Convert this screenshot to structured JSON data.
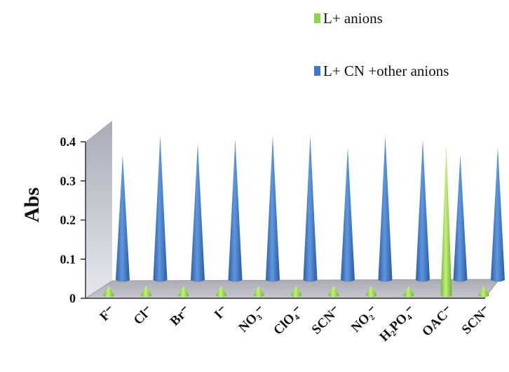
{
  "chart_data": {
    "type": "bar",
    "title": "",
    "xlabel": "",
    "ylabel": "Abs",
    "ylim": [
      0,
      0.4
    ],
    "yticks": [
      "0",
      "0.1",
      "0.2",
      "0.3",
      "0.4"
    ],
    "categories": [
      "F⁻",
      "Cl⁻",
      "Br⁻",
      "I⁻",
      "NO₃⁻",
      "ClO₄⁻",
      "SCN⁻",
      "NO₂⁻",
      "H₂PO₄⁻",
      "OAC⁻",
      "SCN⁻"
    ],
    "series": [
      {
        "name": "L+ anions",
        "color": "#8ED44A",
        "values": [
          0.02,
          0.02,
          0.02,
          0.02,
          0.02,
          0.02,
          0.02,
          0.02,
          0.02,
          0.38,
          0.02
        ]
      },
      {
        "name": "L+ CN +other anions",
        "color": "#3F79C8",
        "values": [
          0.32,
          0.37,
          0.35,
          0.36,
          0.37,
          0.37,
          0.34,
          0.37,
          0.36,
          0.32,
          0.34
        ]
      }
    ],
    "legend_position": "top-right",
    "grid": false
  }
}
